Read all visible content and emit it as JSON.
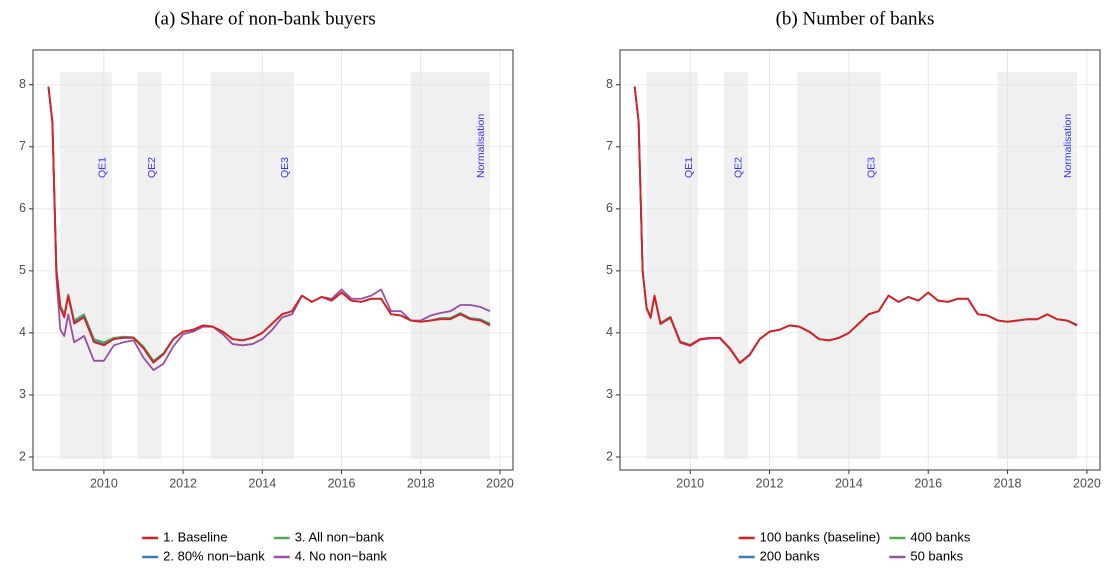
{
  "chart_data": [
    {
      "type": "line",
      "title": "(a) Share of non-bank buyers",
      "x": [
        2008.6,
        2008.7,
        2008.8,
        2008.9,
        2009.0,
        2009.1,
        2009.25,
        2009.5,
        2009.75,
        2010.0,
        2010.25,
        2010.5,
        2010.75,
        2011.0,
        2011.25,
        2011.5,
        2011.75,
        2012.0,
        2012.25,
        2012.5,
        2012.75,
        2013.0,
        2013.25,
        2013.5,
        2013.75,
        2014.0,
        2014.25,
        2014.5,
        2014.75,
        2015.0,
        2015.25,
        2015.5,
        2015.75,
        2016.0,
        2016.25,
        2016.5,
        2016.75,
        2017.0,
        2017.25,
        2017.5,
        2017.75,
        2018.0,
        2018.25,
        2018.5,
        2018.75,
        2019.0,
        2019.25,
        2019.5,
        2019.75
      ],
      "series": [
        {
          "name": "1. Baseline",
          "color": "#e41a1c",
          "values": [
            7.97,
            7.4,
            5.0,
            4.4,
            4.25,
            4.6,
            4.15,
            4.25,
            3.85,
            3.8,
            3.9,
            3.92,
            3.92,
            3.75,
            3.52,
            3.65,
            3.9,
            4.02,
            4.05,
            4.12,
            4.1,
            4.02,
            3.9,
            3.88,
            3.92,
            4.0,
            4.15,
            4.3,
            4.35,
            4.6,
            4.5,
            4.58,
            4.52,
            4.65,
            4.52,
            4.5,
            4.55,
            4.55,
            4.3,
            4.28,
            4.2,
            4.18,
            4.2,
            4.22,
            4.22,
            4.3,
            4.22,
            4.2,
            4.12
          ]
        },
        {
          "name": "2. 80% non−bank",
          "color": "#377eb8",
          "values": [
            7.97,
            7.4,
            5.02,
            4.42,
            4.27,
            4.6,
            4.17,
            4.27,
            3.87,
            3.82,
            3.9,
            3.93,
            3.92,
            3.76,
            3.53,
            3.66,
            3.9,
            4.02,
            4.05,
            4.12,
            4.1,
            4.02,
            3.9,
            3.88,
            3.92,
            4.0,
            4.15,
            4.3,
            4.35,
            4.6,
            4.5,
            4.58,
            4.52,
            4.65,
            4.52,
            4.5,
            4.55,
            4.55,
            4.3,
            4.28,
            4.2,
            4.18,
            4.2,
            4.23,
            4.23,
            4.31,
            4.23,
            4.21,
            4.13
          ]
        },
        {
          "name": "3. All non−bank",
          "color": "#4daf4a",
          "values": [
            7.97,
            7.4,
            5.05,
            4.45,
            4.3,
            4.62,
            4.2,
            4.3,
            3.9,
            3.85,
            3.92,
            3.94,
            3.93,
            3.78,
            3.55,
            3.67,
            3.9,
            4.02,
            4.05,
            4.12,
            4.1,
            4.02,
            3.9,
            3.88,
            3.92,
            4.0,
            4.15,
            4.3,
            4.35,
            4.6,
            4.5,
            4.58,
            4.52,
            4.65,
            4.52,
            4.5,
            4.55,
            4.55,
            4.3,
            4.28,
            4.2,
            4.18,
            4.2,
            4.24,
            4.24,
            4.32,
            4.24,
            4.22,
            4.15
          ]
        },
        {
          "name": "4. No non−bank",
          "color": "#984ea3",
          "values": [
            7.97,
            7.38,
            4.9,
            4.05,
            3.95,
            4.3,
            3.85,
            3.95,
            3.55,
            3.55,
            3.8,
            3.85,
            3.88,
            3.6,
            3.4,
            3.5,
            3.78,
            3.98,
            4.02,
            4.1,
            4.1,
            3.98,
            3.82,
            3.8,
            3.82,
            3.9,
            4.05,
            4.25,
            4.3,
            4.6,
            4.5,
            4.58,
            4.55,
            4.7,
            4.55,
            4.55,
            4.6,
            4.7,
            4.35,
            4.35,
            4.2,
            4.2,
            4.28,
            4.32,
            4.35,
            4.45,
            4.45,
            4.42,
            4.35
          ]
        }
      ],
      "regions": [
        {
          "label": "QE1",
          "start": 2008.9,
          "end": 2010.2
        },
        {
          "label": "QE2",
          "start": 2010.85,
          "end": 2011.45
        },
        {
          "label": "QE3",
          "start": 2012.7,
          "end": 2014.8
        },
        {
          "label": "Normalisation",
          "start": 2017.75,
          "end": 2019.75
        }
      ],
      "xlim": [
        2008.21,
        2020.33
      ],
      "ylim": [
        1.79,
        8.56
      ],
      "xticks": [
        2010,
        2012,
        2014,
        2016,
        2018,
        2020
      ],
      "yticks": [
        2,
        3,
        4,
        5,
        6,
        7,
        8
      ],
      "grid": true,
      "legend": "bottom"
    },
    {
      "type": "line",
      "title": "(b) Number of banks",
      "x": [
        2008.6,
        2008.7,
        2008.8,
        2008.9,
        2009.0,
        2009.1,
        2009.25,
        2009.5,
        2009.75,
        2010.0,
        2010.25,
        2010.5,
        2010.75,
        2011.0,
        2011.25,
        2011.5,
        2011.75,
        2012.0,
        2012.25,
        2012.5,
        2012.75,
        2013.0,
        2013.25,
        2013.5,
        2013.75,
        2014.0,
        2014.25,
        2014.5,
        2014.75,
        2015.0,
        2015.25,
        2015.5,
        2015.75,
        2016.0,
        2016.25,
        2016.5,
        2016.75,
        2017.0,
        2017.25,
        2017.5,
        2017.75,
        2018.0,
        2018.25,
        2018.5,
        2018.75,
        2019.0,
        2019.25,
        2019.5,
        2019.75
      ],
      "series": [
        {
          "name": "100 banks (baseline)",
          "color": "#e41a1c",
          "values": [
            7.97,
            7.4,
            5.0,
            4.4,
            4.25,
            4.6,
            4.15,
            4.25,
            3.85,
            3.8,
            3.9,
            3.92,
            3.92,
            3.75,
            3.52,
            3.65,
            3.9,
            4.02,
            4.05,
            4.12,
            4.1,
            4.02,
            3.9,
            3.88,
            3.92,
            4.0,
            4.15,
            4.3,
            4.35,
            4.6,
            4.5,
            4.58,
            4.52,
            4.65,
            4.52,
            4.5,
            4.55,
            4.55,
            4.3,
            4.28,
            4.2,
            4.18,
            4.2,
            4.22,
            4.22,
            4.3,
            4.22,
            4.2,
            4.12
          ]
        },
        {
          "name": "200 banks",
          "color": "#377eb8",
          "values": [
            7.97,
            7.4,
            5.01,
            4.41,
            4.25,
            4.6,
            4.15,
            4.25,
            3.85,
            3.8,
            3.9,
            3.92,
            3.92,
            3.75,
            3.52,
            3.65,
            3.9,
            4.02,
            4.05,
            4.12,
            4.1,
            4.02,
            3.9,
            3.88,
            3.92,
            4.0,
            4.15,
            4.3,
            4.35,
            4.6,
            4.5,
            4.58,
            4.52,
            4.65,
            4.52,
            4.5,
            4.55,
            4.55,
            4.3,
            4.28,
            4.2,
            4.18,
            4.2,
            4.22,
            4.22,
            4.3,
            4.22,
            4.2,
            4.13
          ]
        },
        {
          "name": "400 banks",
          "color": "#4daf4a",
          "values": [
            7.97,
            7.4,
            5.01,
            4.41,
            4.26,
            4.6,
            4.16,
            4.26,
            3.86,
            3.81,
            3.9,
            3.92,
            3.92,
            3.75,
            3.52,
            3.65,
            3.9,
            4.02,
            4.05,
            4.12,
            4.1,
            4.02,
            3.9,
            3.88,
            3.92,
            4.0,
            4.15,
            4.3,
            4.35,
            4.6,
            4.5,
            4.58,
            4.52,
            4.65,
            4.52,
            4.5,
            4.55,
            4.55,
            4.3,
            4.28,
            4.2,
            4.18,
            4.2,
            4.22,
            4.22,
            4.3,
            4.22,
            4.2,
            4.13
          ]
        },
        {
          "name": "50 banks",
          "color": "#984ea3",
          "values": [
            7.97,
            7.4,
            4.99,
            4.39,
            4.24,
            4.59,
            4.14,
            4.24,
            3.84,
            3.79,
            3.89,
            3.91,
            3.91,
            3.74,
            3.51,
            3.64,
            3.9,
            4.02,
            4.05,
            4.12,
            4.1,
            4.02,
            3.9,
            3.88,
            3.92,
            4.0,
            4.15,
            4.3,
            4.35,
            4.6,
            4.5,
            4.58,
            4.52,
            4.65,
            4.52,
            4.5,
            4.55,
            4.55,
            4.3,
            4.28,
            4.2,
            4.18,
            4.2,
            4.22,
            4.22,
            4.3,
            4.22,
            4.2,
            4.12
          ]
        }
      ],
      "regions": [
        {
          "label": "QE1",
          "start": 2008.9,
          "end": 2010.2
        },
        {
          "label": "QE2",
          "start": 2010.85,
          "end": 2011.45
        },
        {
          "label": "QE3",
          "start": 2012.7,
          "end": 2014.8
        },
        {
          "label": "Normalisation",
          "start": 2017.75,
          "end": 2019.75
        }
      ],
      "xlim": [
        2008.23,
        2020.33
      ],
      "ylim": [
        1.79,
        8.56
      ],
      "xticks": [
        2010,
        2012,
        2014,
        2016,
        2018,
        2020
      ],
      "yticks": [
        2,
        3,
        4,
        5,
        6,
        7,
        8
      ],
      "grid": true,
      "legend": "bottom"
    }
  ]
}
